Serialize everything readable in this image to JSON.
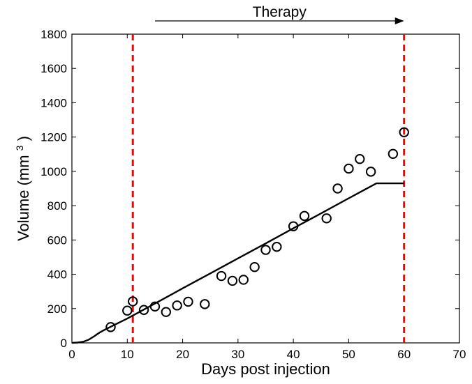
{
  "chart_data": {
    "type": "scatter",
    "xlabel": "Days post injection",
    "ylabel": "Volume (mm",
    "ylabel_superscript": "3",
    "ylabel_suffix": ")",
    "xlim": [
      0,
      70
    ],
    "ylim": [
      0,
      1800
    ],
    "xticks": [
      0,
      10,
      20,
      30,
      40,
      50,
      60,
      70
    ],
    "yticks": [
      0,
      200,
      400,
      600,
      800,
      1000,
      1200,
      1400,
      1600,
      1800
    ],
    "grid": false,
    "series": [
      {
        "type": "scatter",
        "marker": "open-circle",
        "color": "#000000",
        "points": [
          [
            7,
            92
          ],
          [
            10,
            188
          ],
          [
            11,
            242
          ],
          [
            13,
            192
          ],
          [
            15,
            212
          ],
          [
            17,
            180
          ],
          [
            19,
            218
          ],
          [
            21,
            240
          ],
          [
            24,
            226
          ],
          [
            27,
            390
          ],
          [
            29,
            362
          ],
          [
            31,
            368
          ],
          [
            33,
            442
          ],
          [
            35,
            542
          ],
          [
            37,
            560
          ],
          [
            40,
            680
          ],
          [
            42,
            740
          ],
          [
            46,
            726
          ],
          [
            48,
            900
          ],
          [
            50,
            1016
          ],
          [
            52,
            1072
          ],
          [
            54,
            998
          ],
          [
            58,
            1102
          ],
          [
            60,
            1228
          ]
        ]
      },
      {
        "type": "line",
        "color": "#000000",
        "points": [
          [
            0,
            0
          ],
          [
            1,
            2
          ],
          [
            2,
            6
          ],
          [
            3,
            18
          ],
          [
            4,
            38
          ],
          [
            5,
            60
          ],
          [
            6,
            78
          ],
          [
            8,
            110
          ],
          [
            10,
            142
          ],
          [
            15,
            229
          ],
          [
            20,
            318
          ],
          [
            25,
            405
          ],
          [
            30,
            493
          ],
          [
            35,
            580
          ],
          [
            40,
            668
          ],
          [
            45,
            755
          ],
          [
            50,
            843
          ],
          [
            55,
            930
          ],
          [
            60,
            930
          ]
        ]
      }
    ],
    "vlines": [
      {
        "x": 11,
        "color": "#ff0000",
        "style": "dashed"
      },
      {
        "x": 60,
        "color": "#ff0000",
        "style": "dashed"
      }
    ],
    "annotation": {
      "text": "Therapy",
      "x_start": 15,
      "x_end": 60
    }
  }
}
